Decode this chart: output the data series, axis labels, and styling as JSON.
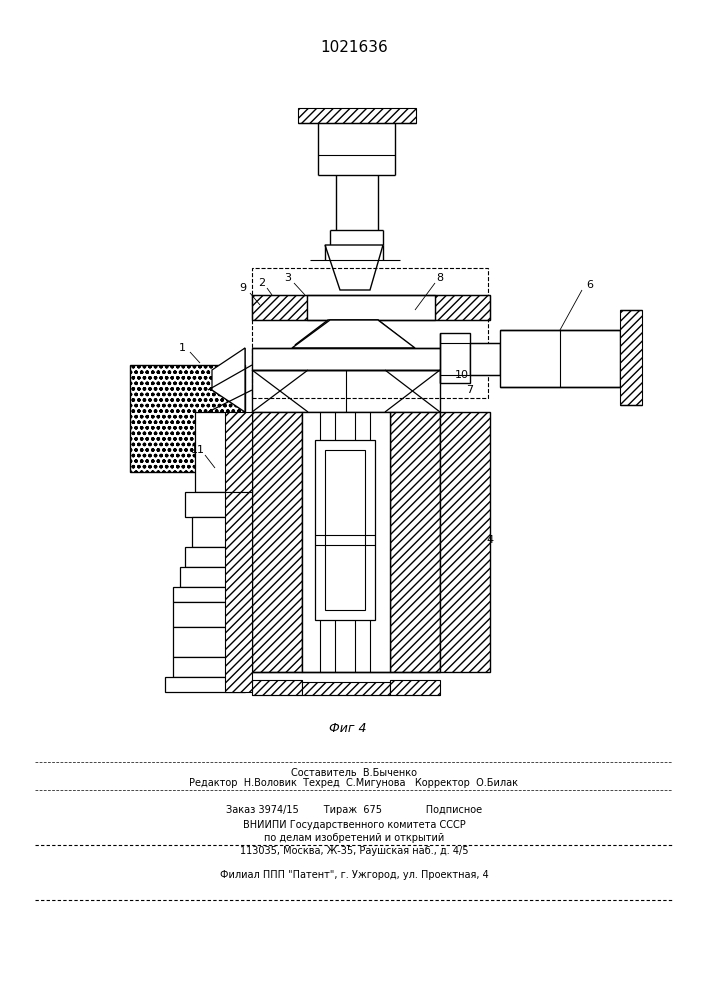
{
  "patent_number": "1021636",
  "figure_caption": "Фиг 4",
  "footer_line1": "Составитель  В.Быченко",
  "footer_line2": "Редактор  Н.Воловик  Техред  С.Мигунова   Корректор  О.Билак",
  "footer_line3": "Заказ 3974/15        Тираж  675              Подписное",
  "footer_line4": "ВНИИПИ Государственного комитета СССР",
  "footer_line5": "по делам изобретений и открытий",
  "footer_line6": "113035, Москва, Ж-35, Раушская наб., д. 4/5",
  "footer_line7": "Филиал ППП \"Патент\", г. Ужгород, ул. Проектная, 4",
  "bg_color": "#ffffff"
}
